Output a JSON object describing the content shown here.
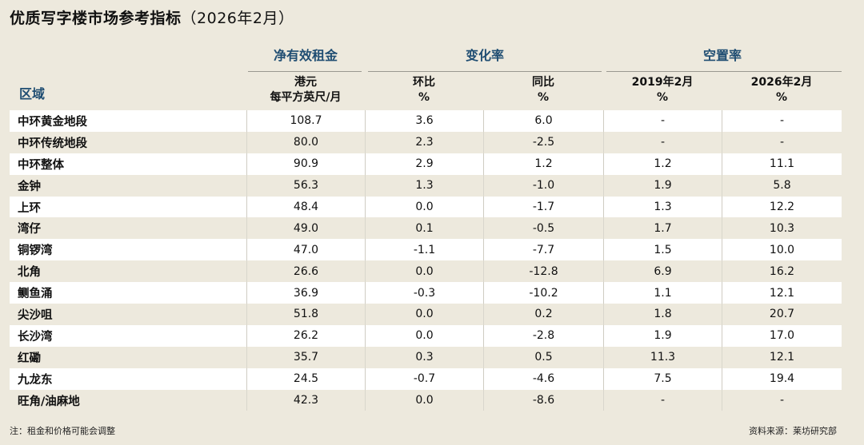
{
  "title": "优质写字楼市场参考指标",
  "title_date": "（2026年2月）",
  "groups": {
    "rent": "净有效租金",
    "change": "变化率",
    "vacancy": "空置率"
  },
  "region_header": "区域",
  "subheaders": {
    "rent_line1": "港元",
    "rent_line2": "每平方英尺/月",
    "mom_line1": "环比",
    "mom_line2": "%",
    "yoy_line1": "同比",
    "yoy_line2": "%",
    "vac2019_line1": "2019年2月",
    "vac2019_line2": "%",
    "vac2026_line1": "2026年2月",
    "vac2026_line2": "%"
  },
  "rows": [
    {
      "name": "中环黄金地段",
      "rent": "108.7",
      "mom": "3.6",
      "yoy": "6.0",
      "vac2019": "-",
      "vac2026": "-"
    },
    {
      "name": "中环传统地段",
      "rent": "80.0",
      "mom": "2.3",
      "yoy": "-2.5",
      "vac2019": "-",
      "vac2026": "-"
    },
    {
      "name": "中环整体",
      "rent": "90.9",
      "mom": "2.9",
      "yoy": "1.2",
      "vac2019": "1.2",
      "vac2026": "11.1"
    },
    {
      "name": "金钟",
      "rent": "56.3",
      "mom": "1.3",
      "yoy": "-1.0",
      "vac2019": "1.9",
      "vac2026": "5.8"
    },
    {
      "name": "上环",
      "rent": "48.4",
      "mom": "0.0",
      "yoy": "-1.7",
      "vac2019": "1.3",
      "vac2026": "12.2"
    },
    {
      "name": "湾仔",
      "rent": "49.0",
      "mom": "0.1",
      "yoy": "-0.5",
      "vac2019": "1.7",
      "vac2026": "10.3"
    },
    {
      "name": "铜锣湾",
      "rent": "47.0",
      "mom": "-1.1",
      "yoy": "-7.7",
      "vac2019": "1.5",
      "vac2026": "10.0"
    },
    {
      "name": "北角",
      "rent": "26.6",
      "mom": "0.0",
      "yoy": "-12.8",
      "vac2019": "6.9",
      "vac2026": "16.2"
    },
    {
      "name": "鲗鱼涌",
      "rent": "36.9",
      "mom": "-0.3",
      "yoy": "-10.2",
      "vac2019": "1.1",
      "vac2026": "12.1"
    },
    {
      "name": "尖沙咀",
      "rent": "51.8",
      "mom": "0.0",
      "yoy": "0.2",
      "vac2019": "1.8",
      "vac2026": "20.7"
    },
    {
      "name": "长沙湾",
      "rent": "26.2",
      "mom": "0.0",
      "yoy": "-2.8",
      "vac2019": "1.9",
      "vac2026": "17.0"
    },
    {
      "name": "红磡",
      "rent": "35.7",
      "mom": "0.3",
      "yoy": "0.5",
      "vac2019": "11.3",
      "vac2026": "12.1"
    },
    {
      "name": "九龙东",
      "rent": "24.5",
      "mom": "-0.7",
      "yoy": "-4.6",
      "vac2019": "7.5",
      "vac2026": "19.4"
    },
    {
      "name": "旺角/油麻地",
      "rent": "42.3",
      "mom": "0.0",
      "yoy": "-8.6",
      "vac2019": "-",
      "vac2026": "-"
    }
  ],
  "footer": {
    "note": "注：租金和价格可能会调整",
    "source": "资料来源：莱坊研究部"
  },
  "colors": {
    "background": "#ede9dd",
    "header_blue": "#1f4d72",
    "row_white": "#ffffff"
  }
}
